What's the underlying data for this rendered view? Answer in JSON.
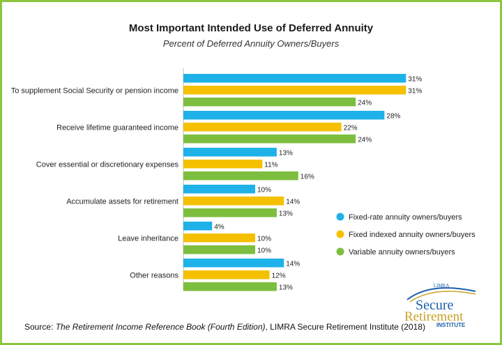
{
  "chart_data": {
    "type": "bar",
    "orientation": "horizontal",
    "title": "Most Important Intended Use of Deferred Annuity",
    "subtitle": "Percent of Deferred Annuity Owners/Buyers",
    "categories": [
      "To supplement Social Security or pension income",
      "Receive lifetime guaranteed income",
      "Cover essential or discretionary expenses",
      "Accumulate assets for retirement",
      "Leave inheritance",
      "Other reasons"
    ],
    "series": [
      {
        "name": "Fixed-rate annuity owners/buyers",
        "color": "#1fb2e8",
        "values": [
          31,
          28,
          13,
          10,
          4,
          14
        ]
      },
      {
        "name": "Fixed indexed annuity owners/buyers",
        "color": "#f5c000",
        "values": [
          31,
          22,
          11,
          14,
          10,
          12
        ]
      },
      {
        "name": "Variable annuity owners/buyers",
        "color": "#7dbe3f",
        "values": [
          24,
          24,
          16,
          13,
          10,
          13
        ]
      }
    ],
    "value_suffix": "%",
    "xlim": [
      0,
      31
    ],
    "grid": false,
    "legend_position": "right"
  },
  "source": {
    "prefix": "Source: ",
    "book": "The Retirement Income Reference Book (Fourth Edition)",
    "rest": ", LIMRA Secure Retirement Institute  (2018)"
  },
  "logo": {
    "top": "LIMRA",
    "line1": "Secure",
    "line2": "Retirement",
    "line3": "INSTITUTE"
  },
  "colors": {
    "frame": "#8cc63f",
    "logo_blue": "#1d5fa8",
    "logo_gold": "#c9a227"
  }
}
